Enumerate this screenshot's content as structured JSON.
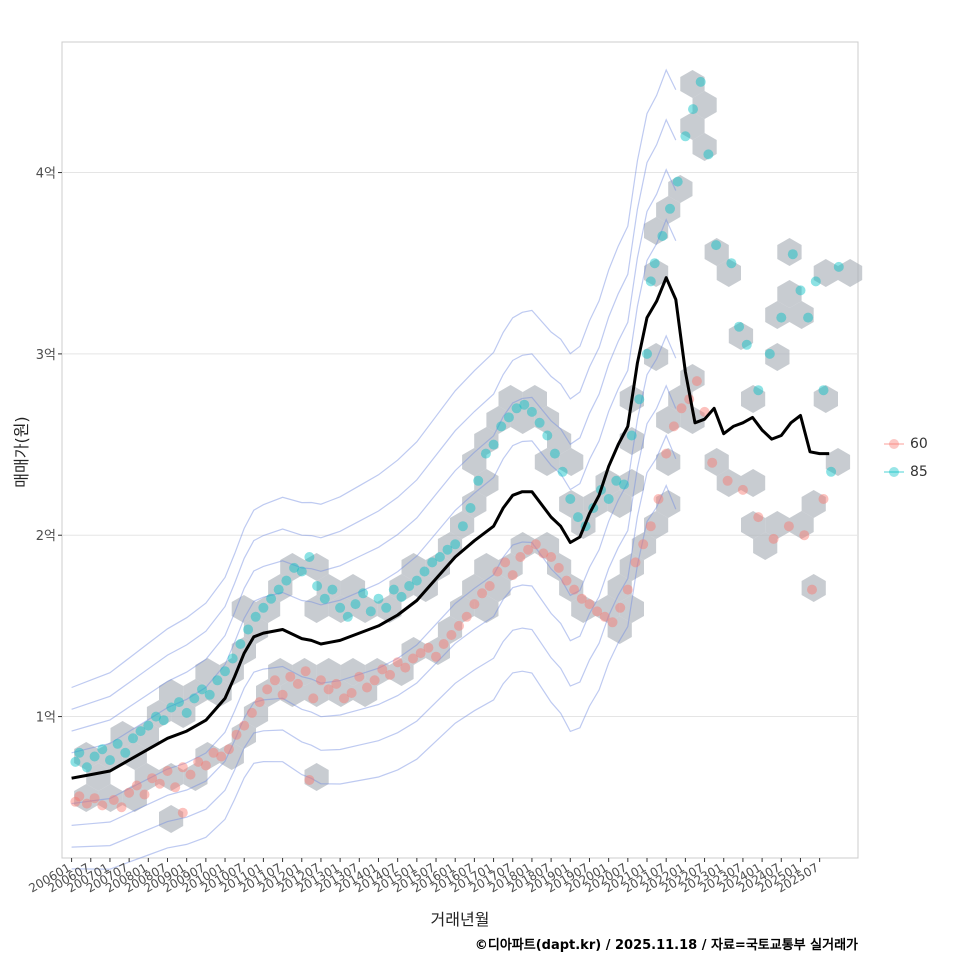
{
  "chart_data": {
    "type": "scatter",
    "title": "",
    "xlabel": "거래년월",
    "ylabel": "매매가(원)",
    "caption": "©디아파트(dapt.kr) / 2025.11.18 / 자료=국토교통부 실거래가",
    "x_tick_labels": [
      "200601",
      "200607",
      "200701",
      "200707",
      "200801",
      "200807",
      "200901",
      "200907",
      "201001",
      "201007",
      "201101",
      "201107",
      "201201",
      "201207",
      "201301",
      "201307",
      "201401",
      "201407",
      "201501",
      "201507",
      "201601",
      "201607",
      "201701",
      "201707",
      "201801",
      "201807",
      "201901",
      "201907",
      "202001",
      "202007",
      "202101",
      "202107",
      "202201",
      "202207",
      "202301",
      "202307",
      "202401",
      "202407",
      "202501",
      "202507"
    ],
    "y_ticks": [
      1,
      2,
      3,
      4
    ],
    "y_tick_labels": [
      "1억",
      "2억",
      "3억",
      "4억"
    ],
    "y_unit": "억원",
    "xlim": [
      2005.75,
      2026.5
    ],
    "ylim": [
      0.22,
      4.72
    ],
    "legend": {
      "position": "right",
      "items": [
        {
          "name": "60",
          "color": "#F8766D"
        },
        {
          "name": "85",
          "color": "#00BFC4"
        }
      ]
    },
    "colors": {
      "series_60": "#F8766D",
      "series_85": "#00BFC4",
      "trend": "#000000",
      "hexbin": "#aab0b8",
      "contour": "#6f8ae0",
      "grid": "#e5e5e5"
    },
    "trend_line": {
      "x": [
        2006.0,
        2006.5,
        2007.0,
        2007.5,
        2008.0,
        2008.5,
        2009.0,
        2009.5,
        2010.0,
        2010.25,
        2010.5,
        2010.75,
        2011.0,
        2011.5,
        2012.0,
        2012.25,
        2012.5,
        2012.75,
        2013.0,
        2013.5,
        2014.0,
        2014.5,
        2015.0,
        2015.5,
        2016.0,
        2016.5,
        2017.0,
        2017.25,
        2017.5,
        2017.75,
        2018.0,
        2018.5,
        2018.75,
        2019.0,
        2019.25,
        2019.5,
        2019.75,
        2020.0,
        2020.25,
        2020.5,
        2020.75,
        2021.0,
        2021.25,
        2021.5,
        2021.75,
        2022.0,
        2022.25,
        2022.5,
        2022.75,
        2023.0,
        2023.25,
        2023.5,
        2023.75,
        2024.0,
        2024.25,
        2024.5,
        2024.75,
        2025.0,
        2025.25,
        2025.5,
        2025.75
      ],
      "y": [
        0.66,
        0.68,
        0.7,
        0.76,
        0.82,
        0.88,
        0.92,
        0.98,
        1.1,
        1.22,
        1.35,
        1.44,
        1.46,
        1.48,
        1.43,
        1.42,
        1.4,
        1.41,
        1.42,
        1.46,
        1.5,
        1.56,
        1.64,
        1.76,
        1.88,
        1.97,
        2.05,
        2.15,
        2.22,
        2.24,
        2.24,
        2.1,
        2.05,
        1.96,
        1.99,
        2.12,
        2.22,
        2.38,
        2.5,
        2.6,
        2.95,
        3.2,
        3.29,
        3.42,
        3.3,
        2.9,
        2.62,
        2.64,
        2.7,
        2.56,
        2.6,
        2.62,
        2.65,
        2.58,
        2.53,
        2.55,
        2.62,
        2.66,
        2.46,
        2.45,
        2.45
      ]
    },
    "series": [
      {
        "name": "60",
        "points": [
          [
            2006.1,
            0.53
          ],
          [
            2006.2,
            0.56
          ],
          [
            2006.4,
            0.52
          ],
          [
            2006.6,
            0.55
          ],
          [
            2006.8,
            0.51
          ],
          [
            2007.1,
            0.54
          ],
          [
            2007.3,
            0.5
          ],
          [
            2007.5,
            0.58
          ],
          [
            2007.7,
            0.62
          ],
          [
            2007.9,
            0.57
          ],
          [
            2008.1,
            0.66
          ],
          [
            2008.3,
            0.63
          ],
          [
            2008.5,
            0.7
          ],
          [
            2008.7,
            0.61
          ],
          [
            2008.9,
            0.72
          ],
          [
            2009.1,
            0.68
          ],
          [
            2009.3,
            0.75
          ],
          [
            2009.5,
            0.73
          ],
          [
            2009.7,
            0.8
          ],
          [
            2009.9,
            0.78
          ],
          [
            2010.1,
            0.82
          ],
          [
            2010.3,
            0.9
          ],
          [
            2010.5,
            0.95
          ],
          [
            2010.7,
            1.02
          ],
          [
            2010.9,
            1.08
          ],
          [
            2011.1,
            1.15
          ],
          [
            2011.3,
            1.2
          ],
          [
            2011.5,
            1.12
          ],
          [
            2011.7,
            1.22
          ],
          [
            2011.9,
            1.18
          ],
          [
            2012.1,
            1.25
          ],
          [
            2012.3,
            1.1
          ],
          [
            2012.5,
            1.2
          ],
          [
            2012.7,
            1.15
          ],
          [
            2012.9,
            1.18
          ],
          [
            2013.1,
            1.1
          ],
          [
            2013.3,
            1.13
          ],
          [
            2013.5,
            1.22
          ],
          [
            2013.7,
            1.16
          ],
          [
            2013.9,
            1.2
          ],
          [
            2014.1,
            1.26
          ],
          [
            2014.3,
            1.23
          ],
          [
            2014.5,
            1.3
          ],
          [
            2014.7,
            1.27
          ],
          [
            2014.9,
            1.32
          ],
          [
            2015.1,
            1.35
          ],
          [
            2015.3,
            1.38
          ],
          [
            2015.5,
            1.33
          ],
          [
            2015.7,
            1.4
          ],
          [
            2015.9,
            1.45
          ],
          [
            2016.1,
            1.5
          ],
          [
            2016.3,
            1.55
          ],
          [
            2016.5,
            1.62
          ],
          [
            2016.7,
            1.68
          ],
          [
            2016.9,
            1.72
          ],
          [
            2017.1,
            1.8
          ],
          [
            2017.3,
            1.85
          ],
          [
            2017.5,
            1.78
          ],
          [
            2017.7,
            1.88
          ],
          [
            2017.9,
            1.92
          ],
          [
            2018.1,
            1.95
          ],
          [
            2018.3,
            1.9
          ],
          [
            2018.5,
            1.88
          ],
          [
            2018.7,
            1.82
          ],
          [
            2018.9,
            1.75
          ],
          [
            2019.1,
            1.7
          ],
          [
            2019.3,
            1.65
          ],
          [
            2019.5,
            1.62
          ],
          [
            2019.7,
            1.58
          ],
          [
            2019.9,
            1.55
          ],
          [
            2020.1,
            1.52
          ],
          [
            2020.3,
            1.6
          ],
          [
            2020.5,
            1.7
          ],
          [
            2020.7,
            1.85
          ],
          [
            2020.9,
            1.95
          ],
          [
            2021.1,
            2.05
          ],
          [
            2021.3,
            2.2
          ],
          [
            2021.5,
            2.45
          ],
          [
            2021.7,
            2.6
          ],
          [
            2021.9,
            2.7
          ],
          [
            2022.1,
            2.75
          ],
          [
            2022.3,
            2.85
          ],
          [
            2022.5,
            2.68
          ],
          [
            2022.7,
            2.4
          ],
          [
            2023.1,
            2.3
          ],
          [
            2023.5,
            2.25
          ],
          [
            2023.9,
            2.1
          ],
          [
            2024.3,
            1.98
          ],
          [
            2024.7,
            2.05
          ],
          [
            2025.1,
            2.0
          ],
          [
            2025.3,
            1.7
          ],
          [
            2025.6,
            2.2
          ],
          [
            2012.2,
            0.65
          ],
          [
            2008.9,
            0.47
          ]
        ]
      },
      {
        "name": "85",
        "points": [
          [
            2006.1,
            0.75
          ],
          [
            2006.2,
            0.8
          ],
          [
            2006.4,
            0.72
          ],
          [
            2006.6,
            0.78
          ],
          [
            2006.8,
            0.82
          ],
          [
            2007.0,
            0.76
          ],
          [
            2007.2,
            0.85
          ],
          [
            2007.4,
            0.8
          ],
          [
            2007.6,
            0.88
          ],
          [
            2007.8,
            0.92
          ],
          [
            2008.0,
            0.95
          ],
          [
            2008.2,
            1.0
          ],
          [
            2008.4,
            0.98
          ],
          [
            2008.6,
            1.05
          ],
          [
            2008.8,
            1.08
          ],
          [
            2009.0,
            1.02
          ],
          [
            2009.2,
            1.1
          ],
          [
            2009.4,
            1.15
          ],
          [
            2009.6,
            1.12
          ],
          [
            2009.8,
            1.2
          ],
          [
            2010.0,
            1.25
          ],
          [
            2010.2,
            1.32
          ],
          [
            2010.4,
            1.4
          ],
          [
            2010.6,
            1.48
          ],
          [
            2010.8,
            1.55
          ],
          [
            2011.0,
            1.6
          ],
          [
            2011.2,
            1.65
          ],
          [
            2011.4,
            1.7
          ],
          [
            2011.6,
            1.75
          ],
          [
            2011.8,
            1.82
          ],
          [
            2012.0,
            1.8
          ],
          [
            2012.2,
            1.88
          ],
          [
            2012.4,
            1.72
          ],
          [
            2012.6,
            1.65
          ],
          [
            2012.8,
            1.7
          ],
          [
            2013.0,
            1.6
          ],
          [
            2013.2,
            1.55
          ],
          [
            2013.4,
            1.62
          ],
          [
            2013.6,
            1.68
          ],
          [
            2013.8,
            1.58
          ],
          [
            2014.0,
            1.65
          ],
          [
            2014.2,
            1.6
          ],
          [
            2014.4,
            1.7
          ],
          [
            2014.6,
            1.66
          ],
          [
            2014.8,
            1.72
          ],
          [
            2015.0,
            1.75
          ],
          [
            2015.2,
            1.8
          ],
          [
            2015.4,
            1.85
          ],
          [
            2015.6,
            1.88
          ],
          [
            2015.8,
            1.92
          ],
          [
            2016.0,
            1.95
          ],
          [
            2016.2,
            2.05
          ],
          [
            2016.4,
            2.15
          ],
          [
            2016.6,
            2.3
          ],
          [
            2016.8,
            2.45
          ],
          [
            2017.0,
            2.5
          ],
          [
            2017.2,
            2.6
          ],
          [
            2017.4,
            2.65
          ],
          [
            2017.6,
            2.7
          ],
          [
            2017.8,
            2.72
          ],
          [
            2018.0,
            2.68
          ],
          [
            2018.2,
            2.62
          ],
          [
            2018.4,
            2.55
          ],
          [
            2018.6,
            2.45
          ],
          [
            2018.8,
            2.35
          ],
          [
            2019.0,
            2.2
          ],
          [
            2019.2,
            2.1
          ],
          [
            2019.4,
            2.05
          ],
          [
            2019.6,
            2.15
          ],
          [
            2019.8,
            2.25
          ],
          [
            2020.0,
            2.2
          ],
          [
            2020.2,
            2.3
          ],
          [
            2020.4,
            2.28
          ],
          [
            2020.6,
            2.55
          ],
          [
            2020.8,
            2.75
          ],
          [
            2021.0,
            3.0
          ],
          [
            2021.1,
            3.4
          ],
          [
            2021.2,
            3.5
          ],
          [
            2021.4,
            3.65
          ],
          [
            2021.6,
            3.8
          ],
          [
            2021.8,
            3.95
          ],
          [
            2022.0,
            4.2
          ],
          [
            2022.2,
            4.35
          ],
          [
            2022.4,
            4.5
          ],
          [
            2022.6,
            4.1
          ],
          [
            2022.8,
            3.6
          ],
          [
            2023.2,
            3.5
          ],
          [
            2023.4,
            3.15
          ],
          [
            2023.6,
            3.05
          ],
          [
            2023.9,
            2.8
          ],
          [
            2024.2,
            3.0
          ],
          [
            2024.5,
            3.2
          ],
          [
            2024.8,
            3.55
          ],
          [
            2025.0,
            3.35
          ],
          [
            2025.2,
            3.2
          ],
          [
            2025.4,
            3.4
          ],
          [
            2025.6,
            2.8
          ],
          [
            2025.8,
            2.35
          ],
          [
            2026.0,
            3.48
          ]
        ]
      }
    ]
  }
}
